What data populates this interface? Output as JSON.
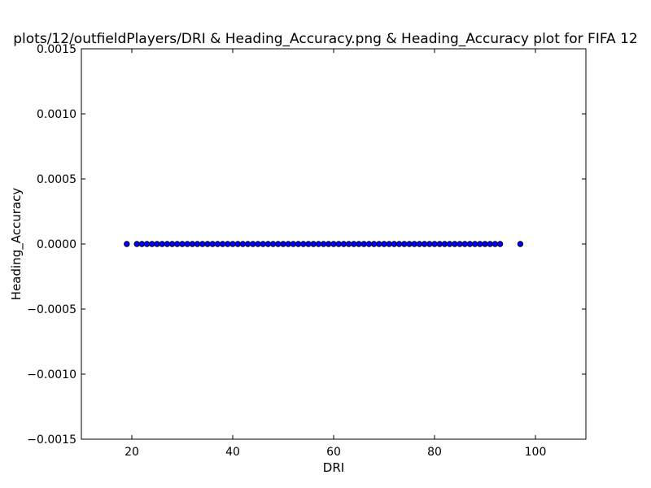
{
  "chart_data": {
    "type": "scatter",
    "title": "plots/12/outfieldPlayers/DRI & Heading_Accuracy.png & Heading_Accuracy plot for FIFA 12",
    "xlabel": "DRI",
    "ylabel": "Heading_Accuracy",
    "xlim": [
      10,
      110
    ],
    "ylim": [
      -0.0015,
      0.0015
    ],
    "x_ticks": [
      20,
      40,
      60,
      80,
      100
    ],
    "x_tick_labels": [
      "20",
      "40",
      "60",
      "80",
      "100"
    ],
    "y_ticks": [
      0.0015,
      0.001,
      0.0005,
      0.0,
      -0.0005,
      -0.001,
      -0.0015
    ],
    "y_tick_labels": [
      "0.0015",
      "0.0010",
      "0.0005",
      "0.0000",
      "−0.0005",
      "−0.0010",
      "−0.0015"
    ],
    "grid": false,
    "legend": "none",
    "marker_color": "#0000ff",
    "series": [
      {
        "x": [
          19,
          21,
          22,
          23,
          24,
          25,
          26,
          27,
          28,
          29,
          30,
          31,
          32,
          33,
          34,
          35,
          36,
          37,
          38,
          39,
          40,
          41,
          42,
          43,
          44,
          45,
          46,
          47,
          48,
          49,
          50,
          51,
          52,
          53,
          54,
          55,
          56,
          57,
          58,
          59,
          60,
          61,
          62,
          63,
          64,
          65,
          66,
          67,
          68,
          69,
          70,
          71,
          72,
          73,
          74,
          75,
          76,
          77,
          78,
          79,
          80,
          81,
          82,
          83,
          84,
          85,
          86,
          87,
          88,
          89,
          90,
          91,
          92,
          93,
          97
        ],
        "y": [
          0,
          0,
          0,
          0,
          0,
          0,
          0,
          0,
          0,
          0,
          0,
          0,
          0,
          0,
          0,
          0,
          0,
          0,
          0,
          0,
          0,
          0,
          0,
          0,
          0,
          0,
          0,
          0,
          0,
          0,
          0,
          0,
          0,
          0,
          0,
          0,
          0,
          0,
          0,
          0,
          0,
          0,
          0,
          0,
          0,
          0,
          0,
          0,
          0,
          0,
          0,
          0,
          0,
          0,
          0,
          0,
          0,
          0,
          0,
          0,
          0,
          0,
          0,
          0,
          0,
          0,
          0,
          0,
          0,
          0,
          0,
          0,
          0,
          0,
          0
        ]
      }
    ]
  }
}
